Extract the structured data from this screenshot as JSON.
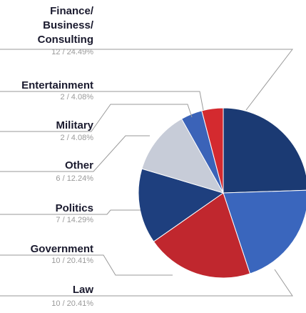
{
  "chart_data": {
    "type": "pie",
    "title": "",
    "slices": [
      {
        "label": "Finance/ Business/ Consulting",
        "lines": [
          "Finance/",
          "Business/",
          "Consulting"
        ],
        "value": 12,
        "value_label": "12 / 24.49%",
        "color": "#1b3a73"
      },
      {
        "label": "Law",
        "lines": [
          "Law"
        ],
        "value": 10,
        "value_label": "10 / 20.41%",
        "color": "#3a66bd"
      },
      {
        "label": "Government",
        "lines": [
          "Government"
        ],
        "value": 10,
        "value_label": "10 / 20.41%",
        "color": "#c0272e"
      },
      {
        "label": "Politics",
        "lines": [
          "Politics"
        ],
        "value": 7,
        "value_label": "7 / 14.29%",
        "color": "#1e3f7e"
      },
      {
        "label": "Other",
        "lines": [
          "Other"
        ],
        "value": 6,
        "value_label": "6 / 12.24%",
        "color": "#c7ccd8"
      },
      {
        "label": "Military",
        "lines": [
          "Military"
        ],
        "value": 2,
        "value_label": "2 / 4.08%",
        "color": "#3b63b8"
      },
      {
        "label": "Entertainment",
        "lines": [
          "Entertainment"
        ],
        "value": 2,
        "value_label": "2 / 4.08%",
        "color": "#d42a2f"
      }
    ],
    "start": "12 o'clock",
    "direction": "clockwise",
    "legend": "none"
  }
}
